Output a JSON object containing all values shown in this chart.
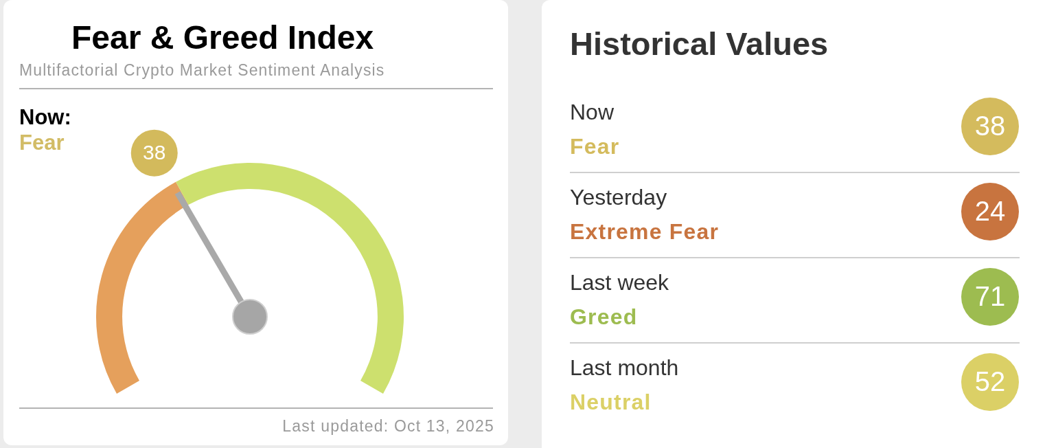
{
  "chart_data": [
    {
      "type": "donut",
      "title": "Fear & Greed Index",
      "subtitle": "Multifactorial Crypto Market Sentiment Analysis",
      "categories": [
        "Fear",
        null
      ],
      "values": [
        38,
        62
      ],
      "colors": [
        "#e5a05c",
        "#cde06e"
      ],
      "needle": "Fear",
      "value_labels": [
        "38",
        null
      ],
      "annotations": [
        "Now:",
        "Last updated: Oct 13, 2025"
      ]
    },
    {
      "type": "other",
      "title": "Historical Values",
      "values": [
        38,
        24,
        71,
        52
      ],
      "colors": [
        "#d4bb5d",
        "#c8743f",
        "#9dbc50",
        "#dbd066"
      ],
      "data_labels": true,
      "annotations": [
        "Now",
        "Fear",
        "Yesterday",
        "Extreme Fear",
        "Last week",
        "Greed",
        "Last month",
        "Neutral"
      ]
    }
  ]
}
